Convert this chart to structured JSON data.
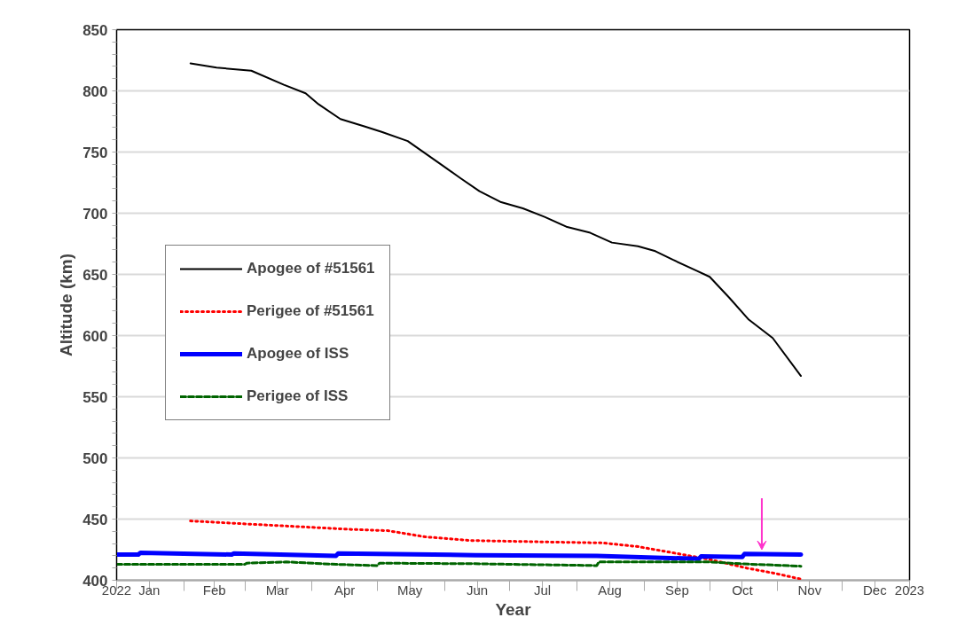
{
  "chart_data": {
    "type": "line",
    "xlabel": "Year",
    "ylabel": "Altitude (km)",
    "xlim": [
      "2022-01-01",
      "2023-01-01"
    ],
    "ylim": [
      400,
      850
    ],
    "yticks": [
      400,
      450,
      500,
      550,
      600,
      650,
      700,
      750,
      800,
      850
    ],
    "xticks": [
      {
        "value": "2022-01-01",
        "label": "2022"
      },
      {
        "value": "2022-02-01",
        "label": null
      },
      {
        "value": "2022-03-01",
        "label": null
      },
      {
        "value": "2022-04-01",
        "label": null
      },
      {
        "value": "2022-05-01",
        "label": null
      },
      {
        "value": "2022-06-01",
        "label": null
      },
      {
        "value": "2022-07-01",
        "label": null
      },
      {
        "value": "2022-08-01",
        "label": null
      },
      {
        "value": "2022-09-01",
        "label": null
      },
      {
        "value": "2022-10-01",
        "label": null
      },
      {
        "value": "2022-11-01",
        "label": null
      },
      {
        "value": "2022-12-01",
        "label": null
      },
      {
        "value": "2023-01-01",
        "label": "2023"
      },
      {
        "value": "2022-01-16",
        "label": "Jan"
      },
      {
        "value": "2022-02-15",
        "label": "Feb"
      },
      {
        "value": "2022-03-16",
        "label": "Mar"
      },
      {
        "value": "2022-04-16",
        "label": "Apr"
      },
      {
        "value": "2022-05-16",
        "label": "May"
      },
      {
        "value": "2022-06-16",
        "label": "Jun"
      },
      {
        "value": "2022-07-16",
        "label": "Jul"
      },
      {
        "value": "2022-08-16",
        "label": "Aug"
      },
      {
        "value": "2022-09-16",
        "label": "Sep"
      },
      {
        "value": "2022-10-16",
        "label": "Oct"
      },
      {
        "value": "2022-11-16",
        "label": "Nov"
      },
      {
        "value": "2022-12-16",
        "label": "Dec"
      }
    ],
    "grid": "y",
    "legend": "left",
    "series": [
      {
        "name": "Apogee of #51561",
        "color": "#000000",
        "line_style": "solid",
        "x": [
          "2022-02-04",
          "2022-02-16",
          "2022-03-04",
          "2022-03-19",
          "2022-03-29",
          "2022-04-04",
          "2022-04-14",
          "2022-04-25",
          "2022-05-03",
          "2022-05-15",
          "2022-05-23",
          "2022-05-31",
          "2022-06-08",
          "2022-06-17",
          "2022-06-27",
          "2022-07-07",
          "2022-07-17",
          "2022-07-27",
          "2022-08-07",
          "2022-08-17",
          "2022-08-29",
          "2022-09-06",
          "2022-09-14",
          "2022-09-25",
          "2022-10-01",
          "2022-10-10",
          "2022-10-19",
          "2022-10-30",
          "2022-11-12"
        ],
        "values": [
          822.5,
          819,
          816.5,
          805,
          798,
          789,
          777,
          771,
          766.5,
          759,
          749,
          739,
          729,
          718,
          709,
          704,
          697,
          689,
          684,
          676,
          673,
          669,
          662,
          653,
          648,
          631,
          613,
          598,
          567
        ]
      },
      {
        "name": "Perigee of #51561",
        "color": "#ff0000",
        "line_style": "dotted",
        "x": [
          "2022-02-04",
          "2022-03-02",
          "2022-04-20",
          "2022-05-06",
          "2022-05-23",
          "2022-06-13",
          "2022-07-12",
          "2022-08-13",
          "2022-08-29",
          "2022-09-14",
          "2022-10-01",
          "2022-10-18",
          "2022-10-30",
          "2022-11-12"
        ],
        "values": [
          448.5,
          446,
          441.5,
          440.5,
          435.5,
          432.5,
          431.5,
          430.5,
          427.5,
          422.5,
          417,
          410,
          406,
          401
        ]
      },
      {
        "name": "Apogee of ISS",
        "color": "#0000ff",
        "line_style": "solid",
        "x": [
          "2022-01-01",
          "2022-01-11",
          "2022-01-12",
          "2022-02-23",
          "2022-02-24",
          "2022-04-12",
          "2022-04-13",
          "2022-06-15",
          "2022-08-10",
          "2022-09-26",
          "2022-09-27",
          "2022-10-16",
          "2022-10-17",
          "2022-11-12"
        ],
        "values": [
          421,
          421,
          422.5,
          421,
          422,
          420,
          422,
          420.5,
          420,
          417.5,
          419.5,
          419,
          421.5,
          421
        ]
      },
      {
        "name": "Perigee of ISS",
        "color": "#006400",
        "line_style": "dashed",
        "x": [
          "2022-01-01",
          "2022-03-01",
          "2022-03-02",
          "2022-03-20",
          "2022-04-12",
          "2022-05-01",
          "2022-05-02",
          "2022-06-15",
          "2022-08-10",
          "2022-08-11",
          "2022-10-01",
          "2022-10-15",
          "2022-11-12"
        ],
        "values": [
          413,
          413,
          414,
          415,
          413,
          412,
          414,
          413.5,
          412,
          415,
          415,
          413.5,
          411.5
        ]
      }
    ]
  }
}
